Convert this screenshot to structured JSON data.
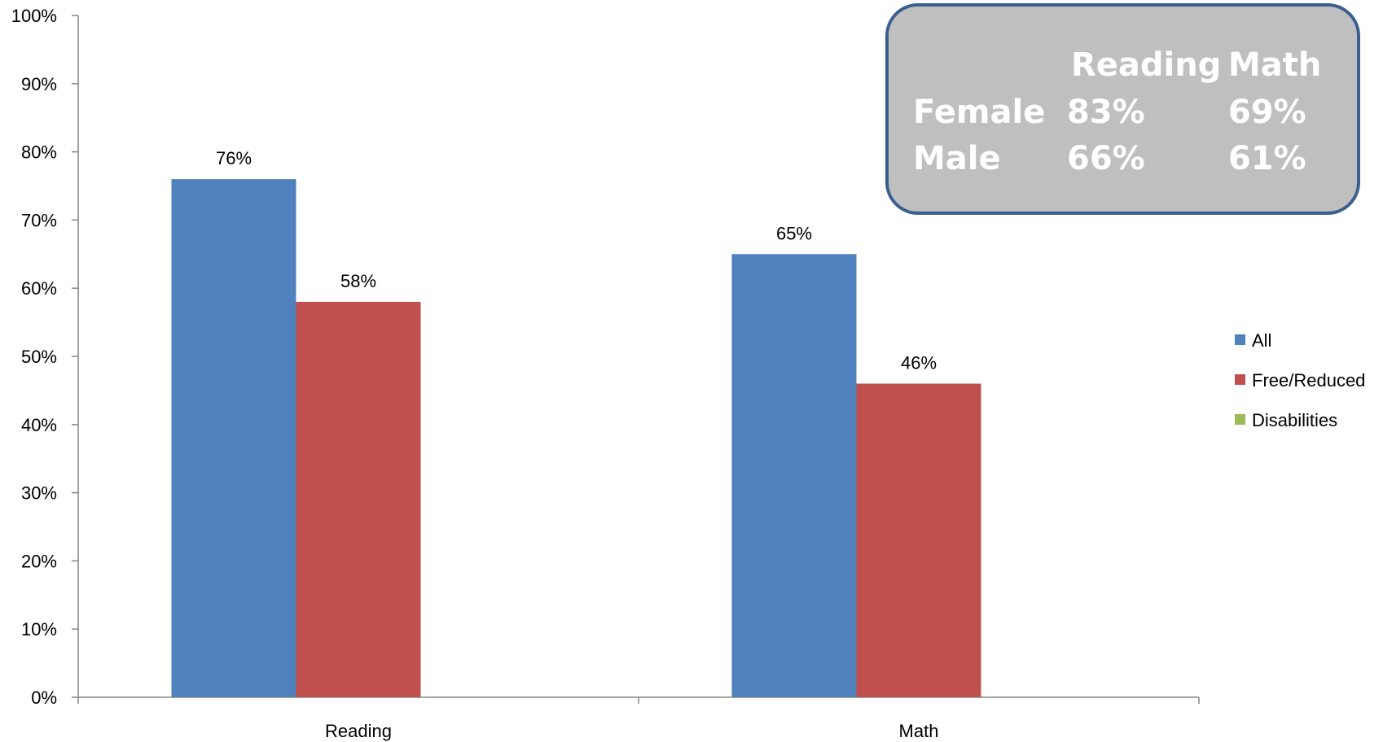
{
  "chart_data": {
    "type": "bar",
    "categories": [
      "Reading",
      "Math"
    ],
    "series": [
      {
        "name": "All",
        "values": [
          76,
          65
        ],
        "color": "#4F81BD",
        "labels": [
          "76%",
          "65%"
        ]
      },
      {
        "name": "Free/Reduced",
        "values": [
          58,
          46
        ],
        "color": "#C0504D",
        "labels": [
          "58%",
          "46%"
        ]
      },
      {
        "name": "Disabilities",
        "values": [
          null,
          null
        ],
        "color": "#9BBB59",
        "labels": [
          "",
          ""
        ]
      }
    ],
    "ylim": [
      0,
      100
    ],
    "yticks": [
      "0%",
      "10%",
      "20%",
      "30%",
      "40%",
      "50%",
      "60%",
      "70%",
      "80%",
      "90%",
      "100%"
    ],
    "grid": false,
    "legend_position": "right",
    "title": "",
    "xlabel": "",
    "ylabel": ""
  },
  "summary_box": {
    "header": [
      "",
      "Reading",
      "Math"
    ],
    "rows": [
      {
        "label": "Female",
        "reading": "83%",
        "math": "69%"
      },
      {
        "label": "Male",
        "reading": "66%",
        "math": "61%"
      }
    ],
    "fill_color": "#BFBFBF",
    "border_color": "#3A5F8F"
  }
}
